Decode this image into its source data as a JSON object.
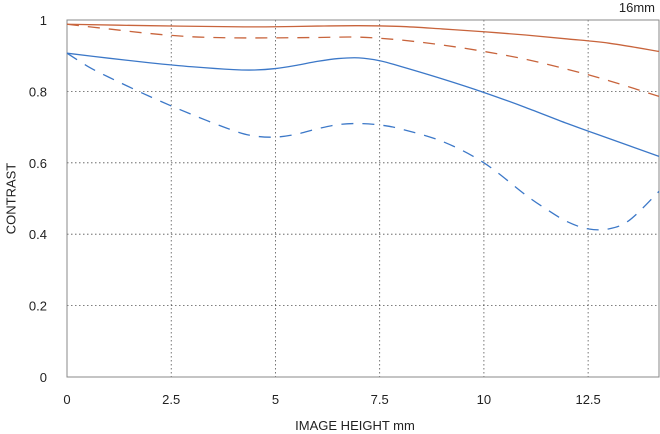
{
  "chart_data": {
    "type": "line",
    "annotation": "16mm",
    "xlabel": "IMAGE HEIGHT  mm",
    "ylabel": "CONTRAST",
    "xlim": [
      0,
      14.2
    ],
    "ylim": [
      0,
      1
    ],
    "xticks": [
      0,
      2.5,
      5,
      7.5,
      10,
      12.5
    ],
    "xtick_labels": [
      "0",
      "2.5",
      "5",
      "7.5",
      "10",
      "12.5"
    ],
    "yticks": [
      0,
      0.2,
      0.4,
      0.6,
      0.8,
      1
    ],
    "ytick_labels": [
      "0",
      "0.2",
      "0.4",
      "0.6",
      "0.8",
      "1"
    ],
    "grid": true,
    "legend": "none",
    "series": [
      {
        "color": "#c8643c",
        "dash": "solid",
        "x": [
          0,
          2,
          4,
          5,
          6,
          7,
          8,
          9,
          10,
          11,
          12,
          13,
          14.2
        ],
        "y": [
          0.988,
          0.984,
          0.981,
          0.981,
          0.983,
          0.984,
          0.982,
          0.975,
          0.967,
          0.958,
          0.947,
          0.935,
          0.912
        ]
      },
      {
        "color": "#c8643c",
        "dash": "dashed",
        "x": [
          0,
          1,
          2,
          3,
          4,
          5,
          6,
          7,
          8,
          9,
          10,
          11,
          12,
          13,
          14.2
        ],
        "y": [
          0.988,
          0.975,
          0.962,
          0.953,
          0.95,
          0.95,
          0.951,
          0.952,
          0.944,
          0.93,
          0.912,
          0.89,
          0.862,
          0.83,
          0.786
        ]
      },
      {
        "color": "#3c78c8",
        "dash": "solid",
        "x": [
          0,
          1,
          2,
          3,
          4,
          4.5,
          5,
          5.5,
          6,
          6.5,
          7,
          7.5,
          8,
          9,
          10,
          11,
          12,
          13,
          14.2
        ],
        "y": [
          0.907,
          0.893,
          0.88,
          0.869,
          0.861,
          0.86,
          0.864,
          0.873,
          0.884,
          0.892,
          0.894,
          0.886,
          0.87,
          0.835,
          0.797,
          0.755,
          0.71,
          0.668,
          0.618
        ]
      },
      {
        "color": "#3c78c8",
        "dash": "dashed",
        "x": [
          0,
          0.5,
          1,
          2,
          3,
          4,
          4.5,
          5,
          5.5,
          6,
          6.5,
          7,
          7.5,
          8,
          9,
          10,
          11,
          11.5,
          12,
          12.5,
          13,
          13.5,
          14.2
        ],
        "y": [
          0.907,
          0.87,
          0.84,
          0.785,
          0.735,
          0.69,
          0.675,
          0.672,
          0.68,
          0.695,
          0.707,
          0.71,
          0.706,
          0.695,
          0.66,
          0.6,
          0.51,
          0.47,
          0.435,
          0.415,
          0.415,
          0.44,
          0.52
        ]
      }
    ]
  }
}
